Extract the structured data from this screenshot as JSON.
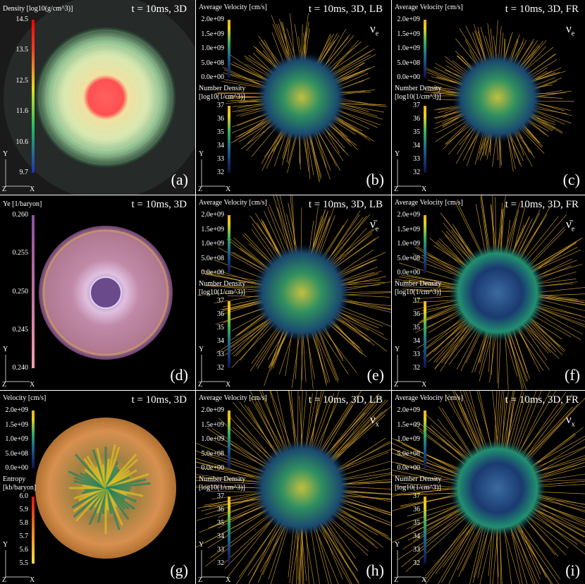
{
  "panels": [
    {
      "label": "(a)",
      "time": "t = 10ms, 3D",
      "colorbars": [
        {
          "title": "Density [log10(g/cm^3)]",
          "ticks": [
            "14.5",
            "13.5",
            "12.5",
            "11.6",
            "10.6",
            "9.7"
          ]
        }
      ],
      "axes": {
        "y": "Y",
        "z": "Z",
        "x": "X"
      }
    },
    {
      "label": "(b)",
      "time": "t = 10ms, 3D, LB",
      "species": {
        "symbol": "ν",
        "sub": "e"
      },
      "colorbars": [
        {
          "title": "Average Velocity [cm/s]",
          "ticks": [
            "2.0e+09",
            "1.5e+09",
            "1.0e+09",
            "5.0e+08",
            "0.0e+00"
          ]
        },
        {
          "title": "Number Density [log10(1/cm^3)]",
          "ticks": [
            "37",
            "36",
            "35",
            "34",
            "33",
            "32"
          ]
        }
      ],
      "axes": {
        "y": "Y",
        "z": "Z",
        "x": "X"
      }
    },
    {
      "label": "(c)",
      "time": "t = 10ms, 3D, FR",
      "species": {
        "symbol": "ν",
        "sub": "e"
      },
      "colorbars": [
        {
          "title": "Average Velocity [cm/s]",
          "ticks": [
            "2.0e+09",
            "1.5e+09",
            "1.0e+09",
            "5.0e+08",
            "0.0e+00"
          ]
        },
        {
          "title": "Number Density [log10(1/cm^3)]",
          "ticks": [
            "37",
            "36",
            "35",
            "34",
            "33",
            "32"
          ]
        }
      ],
      "axes": {
        "y": "Y",
        "z": "Z",
        "x": "X"
      }
    },
    {
      "label": "(d)",
      "time": "t = 10ms, 3D",
      "colorbars": [
        {
          "title": "Ye [1/baryon]",
          "ticks": [
            "0.260",
            "0.255",
            "0.250",
            "0.245",
            "0.240"
          ]
        }
      ],
      "axes": {
        "y": "Y",
        "z": "Z",
        "x": "X"
      }
    },
    {
      "label": "(e)",
      "time": "t = 10ms, 3D, LB",
      "species": {
        "symbol": "ν̄",
        "sub": "e"
      },
      "colorbars": [
        {
          "title": "Average Velocity [cm/s]",
          "ticks": [
            "2.0e+09",
            "1.5e+09",
            "1.0e+09",
            "5.0e+08",
            "0.0e+00"
          ]
        },
        {
          "title": "Number Density [log10(1/cm^3)]",
          "ticks": [
            "37",
            "36",
            "35",
            "34",
            "33",
            "32"
          ]
        }
      ],
      "axes": {
        "y": "Y",
        "z": "Z",
        "x": "X"
      }
    },
    {
      "label": "(f)",
      "time": "t = 10ms, 3D, FR",
      "species": {
        "symbol": "ν̄",
        "sub": "e"
      },
      "colorbars": [
        {
          "title": "Average Velocity [cm/s]",
          "ticks": [
            "2.0e+09",
            "1.5e+09",
            "1.0e+09",
            "5.0e+08",
            "0.0e+00"
          ]
        },
        {
          "title": "Number Density [log10(1/cm^3)]",
          "ticks": [
            "37",
            "36",
            "35",
            "34",
            "33",
            "32"
          ]
        }
      ],
      "axes": {
        "y": "Y",
        "z": "Z",
        "x": "X"
      }
    },
    {
      "label": "(g)",
      "time": "t = 10ms, 3D",
      "colorbars": [
        {
          "title": "Velocity [cm/s]",
          "ticks": [
            "2.0e+09",
            "1.5e+09",
            "1.0e+09",
            "5.0e+08",
            "0.0e+00"
          ]
        },
        {
          "title": "Entropy [kb/baryon]",
          "ticks": [
            "6.0",
            "5.9",
            "5.8",
            "5.7",
            "5.6",
            "5.5"
          ]
        }
      ],
      "axes": {
        "y": "Y",
        "z": "Z",
        "x": "X"
      }
    },
    {
      "label": "(h)",
      "time": "t = 10ms, 3D, LB",
      "species": {
        "symbol": "ν",
        "sub": "x"
      },
      "colorbars": [
        {
          "title": "Average Velocity [cm/s]",
          "ticks": [
            "2.0e+09",
            "1.5e+09",
            "1.0e+09",
            "5.0e+08",
            "0.0e+00"
          ]
        },
        {
          "title": "Number Density [log10(1/cm^3)]",
          "ticks": [
            "37",
            "36",
            "35",
            "34",
            "33",
            "32"
          ]
        }
      ],
      "axes": {
        "y": "Y",
        "z": "Z",
        "x": "X"
      }
    },
    {
      "label": "(i)",
      "time": "t = 10ms, 3D, FR",
      "species": {
        "symbol": "ν",
        "sub": "x"
      },
      "colorbars": [
        {
          "title": "Average Velocity [cm/s]",
          "ticks": [
            "2.0e+09",
            "1.5e+09",
            "1.0e+09",
            "5.0e+08",
            "0.0e+00"
          ]
        },
        {
          "title": "Number Density [log10(1/cm^3)]",
          "ticks": [
            "37",
            "36",
            "35",
            "34",
            "33",
            "32"
          ]
        }
      ],
      "axes": {
        "y": "Y",
        "z": "Z",
        "x": "X"
      }
    }
  ]
}
